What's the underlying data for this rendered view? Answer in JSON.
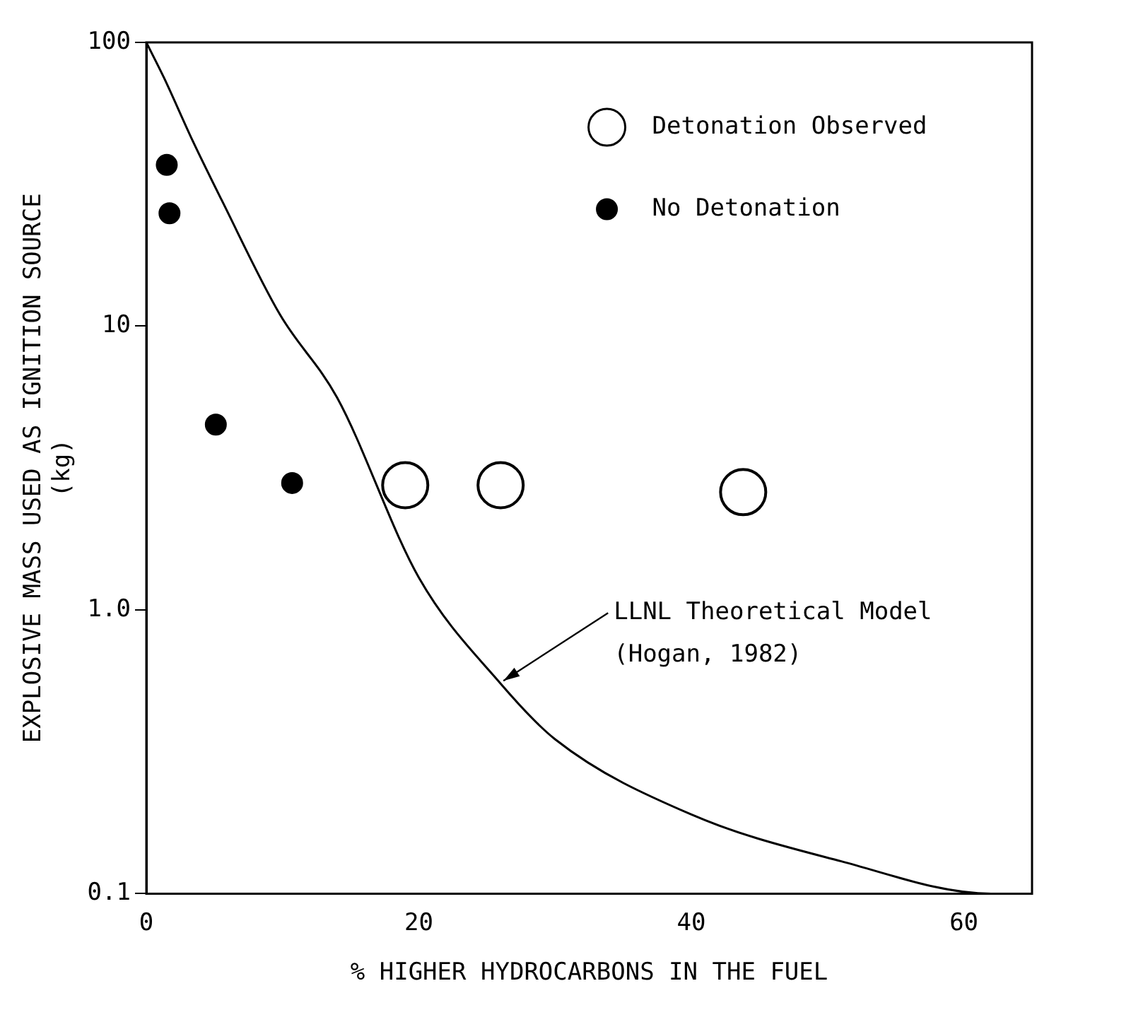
{
  "chart_data": {
    "type": "scatter",
    "xlabel": "% HIGHER HYDROCARBONS IN THE FUEL",
    "ylabel": "EXPLOSIVE MASS USED AS IGNITION SOURCE\n(kg)",
    "log": "y",
    "xlim": [
      0,
      65
    ],
    "xticks": [
      0,
      20,
      40,
      60
    ],
    "ylim": [
      0.1,
      100
    ],
    "yticks": [
      {
        "value": 0.1,
        "label": "0.1"
      },
      {
        "value": 1,
        "label": "1.0"
      },
      10,
      100
    ],
    "grid": false,
    "legend": "top right",
    "annotations": [
      {
        "text": "LLNL Theoretical Model\n(Hogan, 1982)",
        "x": 26,
        "y": 0.55
      }
    ],
    "series": [
      {
        "name": "Detonation Observed",
        "type": "scatter",
        "marker": "circle",
        "color": "#000000",
        "x": [
          19,
          26,
          43.8
        ],
        "values": [
          2.75,
          2.75,
          2.6
        ]
      },
      {
        "name": "No Detonation",
        "type": "scatter",
        "marker": "circle",
        "color": "#000000",
        "x": [
          1.5,
          1.7,
          5.1,
          10.7
        ],
        "values": [
          37,
          25,
          4.5,
          2.8
        ]
      },
      {
        "type": "line",
        "marker": "none",
        "color": "#000000",
        "x": [
          0,
          1.3,
          3.4,
          5.5,
          9.8,
          14,
          20,
          26,
          30,
          40,
          51,
          62,
          65
        ],
        "values": [
          100,
          75,
          45,
          28,
          11,
          5.6,
          1.3,
          0.55,
          0.35,
          0.19,
          0.13,
          0.1,
          0.1
        ]
      }
    ]
  }
}
